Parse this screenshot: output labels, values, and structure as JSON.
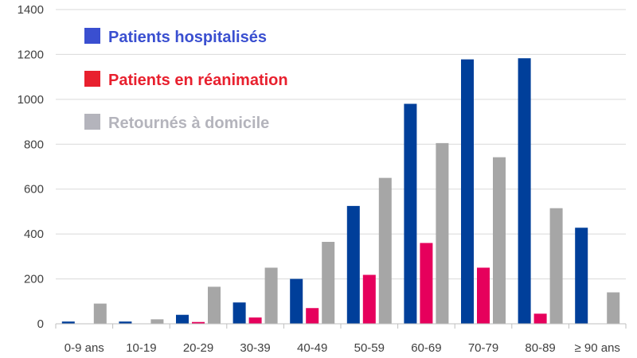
{
  "chart_data": {
    "type": "bar",
    "categories": [
      "0-9 ans",
      "10-19",
      "20-29",
      "30-39",
      "40-49",
      "50-59",
      "60-69",
      "70-79",
      "80-89",
      "≥ 90 ans"
    ],
    "series": [
      {
        "name": "Patients hospitalisés",
        "color": "#003f9a",
        "legend_color": "#3a4fd0",
        "values": [
          10,
          10,
          40,
          95,
          200,
          525,
          980,
          1178,
          1183,
          428
        ]
      },
      {
        "name": "Patients en réanimation",
        "color": "#e6005c",
        "legend_color": "#e8202e",
        "values": [
          0,
          0,
          8,
          28,
          70,
          218,
          360,
          250,
          45,
          0
        ]
      },
      {
        "name": "Retournés à domicile",
        "color": "#a6a6a6",
        "legend_color": "#b4b4bc",
        "values": [
          90,
          20,
          165,
          250,
          365,
          650,
          805,
          742,
          515,
          140
        ]
      }
    ],
    "yticks": [
      0,
      200,
      400,
      600,
      800,
      1000,
      1200,
      1400
    ],
    "ylim": [
      0,
      1400
    ],
    "grid": true,
    "legend_position": "top-left",
    "title": "",
    "xlabel": "",
    "ylabel": ""
  }
}
